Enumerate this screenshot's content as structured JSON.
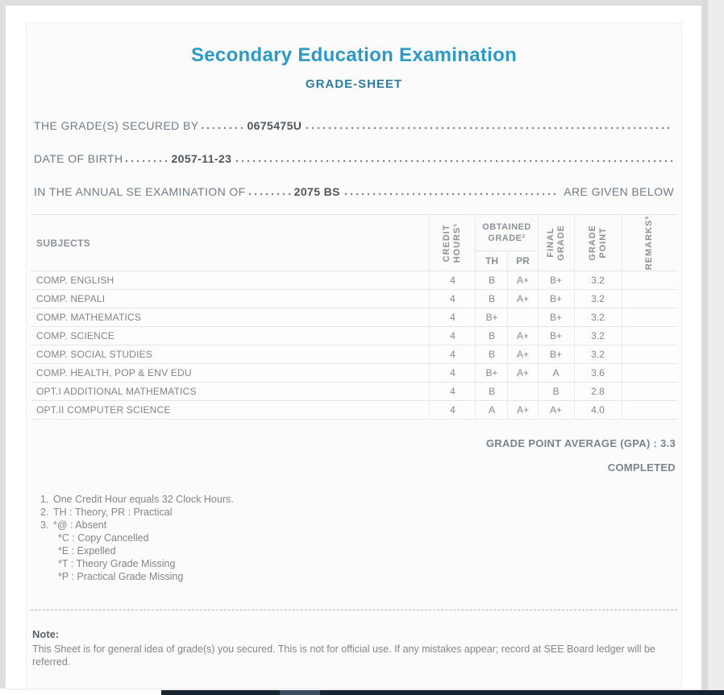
{
  "header": {
    "title": "Secondary Education Examination",
    "subtitle": "GRADE-SHEET"
  },
  "colors": {
    "title_accent": "#2b9ac6",
    "subtitle_accent": "#2b7da6",
    "taskbar_fragment": "#182430"
  },
  "fields": [
    {
      "label": "THE GRADE(S) SECURED BY",
      "value": "0675475U",
      "suffix": ""
    },
    {
      "label": "DATE OF BIRTH",
      "value": "2057-11-23",
      "suffix": ""
    },
    {
      "label": "IN THE ANNUAL SE EXAMINATION OF",
      "value": "2075 BS",
      "suffix": "ARE GIVEN BELOW"
    }
  ],
  "table": {
    "headers": {
      "subjects": "SUBJECTS",
      "credit": [
        "CREDIT",
        "HOURS¹"
      ],
      "obtained": [
        "OBTAINED",
        "GRADE²"
      ],
      "th": "TH",
      "pr": "PR",
      "final": [
        "FINAL",
        "GRADE"
      ],
      "point": [
        "GRADE",
        "POINT"
      ],
      "remarks": "REMARKS³"
    },
    "rows": [
      {
        "subject": "COMP. ENGLISH",
        "credit": "4",
        "th": "B",
        "pr": "A+",
        "final": "B+",
        "point": "3.2",
        "remarks": ""
      },
      {
        "subject": "COMP. NEPALI",
        "credit": "4",
        "th": "B",
        "pr": "A+",
        "final": "B+",
        "point": "3.2",
        "remarks": ""
      },
      {
        "subject": "COMP. MATHEMATICS",
        "credit": "4",
        "th": "B+",
        "pr": "",
        "final": "B+",
        "point": "3.2",
        "remarks": ""
      },
      {
        "subject": "COMP. SCIENCE",
        "credit": "4",
        "th": "B",
        "pr": "A+",
        "final": "B+",
        "point": "3.2",
        "remarks": ""
      },
      {
        "subject": "COMP. SOCIAL STUDIES",
        "credit": "4",
        "th": "B",
        "pr": "A+",
        "final": "B+",
        "point": "3.2",
        "remarks": ""
      },
      {
        "subject": "COMP. HEALTH, POP & ENV EDU",
        "credit": "4",
        "th": "B+",
        "pr": "A+",
        "final": "A",
        "point": "3.6",
        "remarks": ""
      },
      {
        "subject": "OPT.I ADDITIONAL MATHEMATICS",
        "credit": "4",
        "th": "B",
        "pr": "",
        "final": "B",
        "point": "2.8",
        "remarks": ""
      },
      {
        "subject": "OPT.II COMPUTER SCIENCE",
        "credit": "4",
        "th": "A",
        "pr": "A+",
        "final": "A+",
        "point": "4.0",
        "remarks": ""
      }
    ]
  },
  "summary": {
    "gpa": "GRADE POINT AVERAGE (GPA) : 3.3",
    "status": "COMPLETED"
  },
  "footnotes": [
    {
      "num": "1.",
      "text": "One Credit Hour equals 32 Clock Hours."
    },
    {
      "num": "2.",
      "text": "TH : Theory, PR : Practical"
    },
    {
      "num": "3.",
      "text": "*@ : Absent"
    },
    {
      "num": "",
      "text": "*C : Copy Cancelled"
    },
    {
      "num": "",
      "text": "*E : Expelled"
    },
    {
      "num": "",
      "text": "*T : Theory Grade Missing"
    },
    {
      "num": "",
      "text": "*P : Practical Grade Missing"
    }
  ],
  "note": {
    "heading": "Note:",
    "text": "This Sheet is for general idea of grade(s) you secured. This is not for official use. If any mistakes appear; record at SEE Board ledger will be referred."
  }
}
